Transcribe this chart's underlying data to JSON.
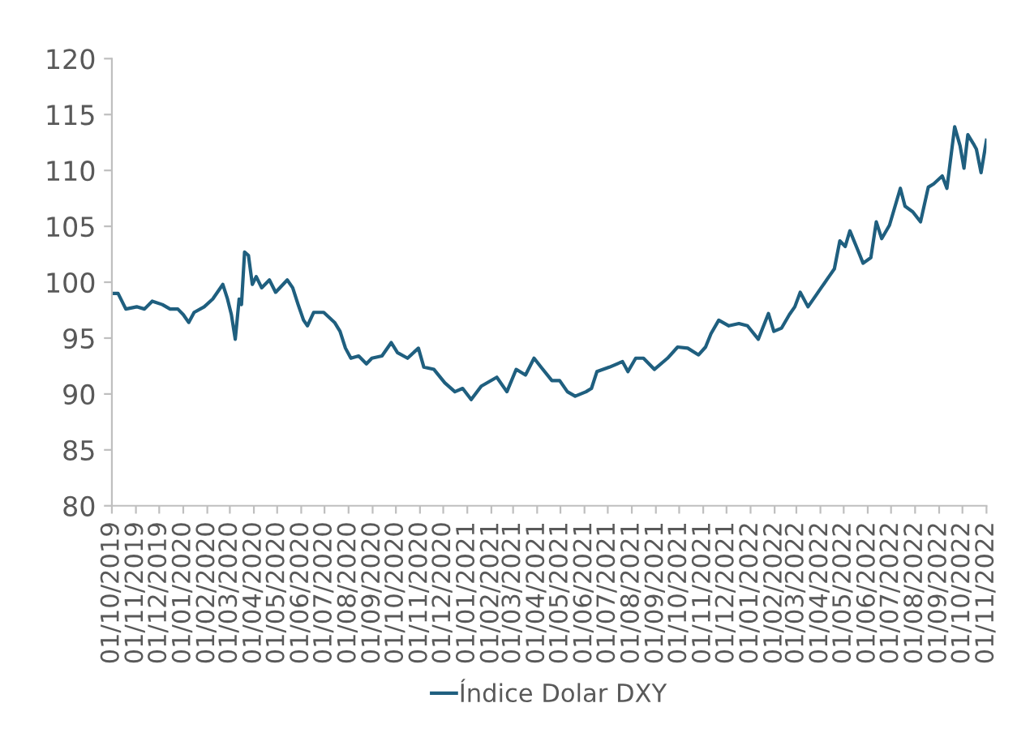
{
  "chart_data": {
    "type": "line",
    "x": [
      "2019-10-01",
      "2019-10-09",
      "2019-10-19",
      "2019-11-02",
      "2019-11-12",
      "2019-11-22",
      "2019-12-05",
      "2019-12-15",
      "2019-12-25",
      "2020-01-01",
      "2020-01-08",
      "2020-01-15",
      "2020-01-28",
      "2020-02-08",
      "2020-02-21",
      "2020-02-27",
      "2020-03-03",
      "2020-03-08",
      "2020-03-13",
      "2020-03-16",
      "2020-03-20",
      "2020-03-25",
      "2020-03-30",
      "2020-04-04",
      "2020-04-11",
      "2020-04-21",
      "2020-04-29",
      "2020-05-14",
      "2020-05-21",
      "2020-05-28",
      "2020-06-04",
      "2020-06-09",
      "2020-06-17",
      "2020-06-30",
      "2020-07-14",
      "2020-07-21",
      "2020-07-28",
      "2020-08-04",
      "2020-08-14",
      "2020-08-24",
      "2020-08-31",
      "2020-09-13",
      "2020-09-25",
      "2020-10-03",
      "2020-10-16",
      "2020-10-30",
      "2020-11-06",
      "2020-11-19",
      "2020-12-03",
      "2020-12-16",
      "2020-12-26",
      "2021-01-06",
      "2021-01-19",
      "2021-02-08",
      "2021-02-21",
      "2021-03-05",
      "2021-03-17",
      "2021-03-28",
      "2021-04-06",
      "2021-04-20",
      "2021-04-30",
      "2021-05-10",
      "2021-05-20",
      "2021-06-03",
      "2021-06-10",
      "2021-06-17",
      "2021-07-03",
      "2021-07-20",
      "2021-07-27",
      "2021-08-06",
      "2021-08-16",
      "2021-08-30",
      "2021-09-16",
      "2021-09-29",
      "2021-10-12",
      "2021-10-26",
      "2021-11-04",
      "2021-11-11",
      "2021-11-21",
      "2021-12-04",
      "2021-12-17",
      "2021-12-28",
      "2022-01-11",
      "2022-01-24",
      "2022-01-31",
      "2022-02-10",
      "2022-02-20",
      "2022-02-27",
      "2022-03-06",
      "2022-03-16",
      "2022-03-26",
      "2022-04-02",
      "2022-04-12",
      "2022-04-19",
      "2022-04-26",
      "2022-05-03",
      "2022-05-09",
      "2022-05-19",
      "2022-05-26",
      "2022-06-05",
      "2022-06-12",
      "2022-06-19",
      "2022-06-29",
      "2022-07-13",
      "2022-07-19",
      "2022-07-29",
      "2022-08-08",
      "2022-08-18",
      "2022-08-25",
      "2022-09-05",
      "2022-09-11",
      "2022-09-21",
      "2022-09-28",
      "2022-10-03",
      "2022-10-08",
      "2022-10-15",
      "2022-10-19",
      "2022-10-25",
      "2022-11-01"
    ],
    "series": [
      {
        "name": "Índice Dolar DXY",
        "color": "#1f5f7f",
        "values": [
          99.0,
          99.0,
          97.6,
          97.8,
          97.6,
          98.3,
          98.0,
          97.6,
          97.6,
          97.1,
          96.4,
          97.3,
          97.8,
          98.5,
          99.8,
          98.5,
          97.1,
          94.9,
          98.5,
          98.0,
          102.7,
          102.4,
          99.8,
          100.5,
          99.5,
          100.2,
          99.1,
          100.2,
          99.5,
          98.0,
          96.6,
          96.1,
          97.3,
          97.3,
          96.4,
          95.6,
          94.1,
          93.2,
          93.4,
          92.7,
          93.2,
          93.4,
          94.6,
          93.7,
          93.2,
          94.1,
          92.4,
          92.2,
          91.0,
          90.2,
          90.5,
          89.5,
          90.7,
          91.5,
          90.2,
          92.2,
          91.7,
          93.2,
          92.4,
          91.2,
          91.2,
          90.2,
          89.8,
          90.2,
          90.5,
          92.0,
          92.4,
          92.9,
          92.0,
          93.2,
          93.2,
          92.2,
          93.2,
          94.2,
          94.1,
          93.5,
          94.2,
          95.4,
          96.6,
          96.1,
          96.3,
          96.1,
          94.9,
          97.2,
          95.6,
          95.9,
          97.1,
          97.8,
          99.1,
          97.8,
          98.8,
          99.5,
          100.5,
          101.2,
          103.7,
          103.2,
          104.6,
          102.9,
          101.7,
          102.2,
          105.4,
          103.9,
          105.1,
          108.4,
          106.8,
          106.3,
          105.4,
          108.5,
          108.8,
          109.5,
          108.4,
          113.9,
          112.2,
          110.2,
          113.2,
          112.4,
          111.9,
          109.8,
          112.7
        ]
      }
    ],
    "xlim": [
      "2019-10-01",
      "2022-11-01"
    ],
    "xticks": [
      {
        "value": "2019-10-01",
        "label": "01/10/2019"
      },
      {
        "value": "2019-11-01",
        "label": "01/11/2019"
      },
      {
        "value": "2019-12-01",
        "label": "01/12/2019"
      },
      {
        "value": "2020-01-01",
        "label": "01/01/2020"
      },
      {
        "value": "2020-02-01",
        "label": "01/02/2020"
      },
      {
        "value": "2020-03-01",
        "label": "01/03/2020"
      },
      {
        "value": "2020-04-01",
        "label": "01/04/2020"
      },
      {
        "value": "2020-05-01",
        "label": "01/05/2020"
      },
      {
        "value": "2020-06-01",
        "label": "01/06/2020"
      },
      {
        "value": "2020-07-01",
        "label": "01/07/2020"
      },
      {
        "value": "2020-08-01",
        "label": "01/08/2020"
      },
      {
        "value": "2020-09-01",
        "label": "01/09/2020"
      },
      {
        "value": "2020-10-01",
        "label": "01/10/2020"
      },
      {
        "value": "2020-11-01",
        "label": "01/11/2020"
      },
      {
        "value": "2020-12-01",
        "label": "01/12/2020"
      },
      {
        "value": "2021-01-01",
        "label": "01/01/2021"
      },
      {
        "value": "2021-02-01",
        "label": "01/02/2021"
      },
      {
        "value": "2021-03-01",
        "label": "01/03/2021"
      },
      {
        "value": "2021-04-01",
        "label": "01/04/2021"
      },
      {
        "value": "2021-05-01",
        "label": "01/05/2021"
      },
      {
        "value": "2021-06-01",
        "label": "01/06/2021"
      },
      {
        "value": "2021-07-01",
        "label": "01/07/2021"
      },
      {
        "value": "2021-08-01",
        "label": "01/08/2021"
      },
      {
        "value": "2021-09-01",
        "label": "01/09/2021"
      },
      {
        "value": "2021-10-01",
        "label": "01/10/2021"
      },
      {
        "value": "2021-11-01",
        "label": "01/11/2021"
      },
      {
        "value": "2021-12-01",
        "label": "01/12/2021"
      },
      {
        "value": "2022-01-01",
        "label": "01/01/2022"
      },
      {
        "value": "2022-02-01",
        "label": "01/02/2022"
      },
      {
        "value": "2022-03-01",
        "label": "01/03/2022"
      },
      {
        "value": "2022-04-01",
        "label": "01/04/2022"
      },
      {
        "value": "2022-05-01",
        "label": "01/05/2022"
      },
      {
        "value": "2022-06-01",
        "label": "01/06/2022"
      },
      {
        "value": "2022-07-01",
        "label": "01/07/2022"
      },
      {
        "value": "2022-08-01",
        "label": "01/08/2022"
      },
      {
        "value": "2022-09-01",
        "label": "01/09/2022"
      },
      {
        "value": "2022-10-01",
        "label": "01/10/2022"
      },
      {
        "value": "2022-11-01",
        "label": "01/11/2022"
      }
    ],
    "ylim": [
      80,
      120
    ],
    "yticks": [
      80,
      85,
      90,
      95,
      100,
      105,
      110,
      115,
      120
    ],
    "grid": false,
    "legend": "bottom"
  }
}
